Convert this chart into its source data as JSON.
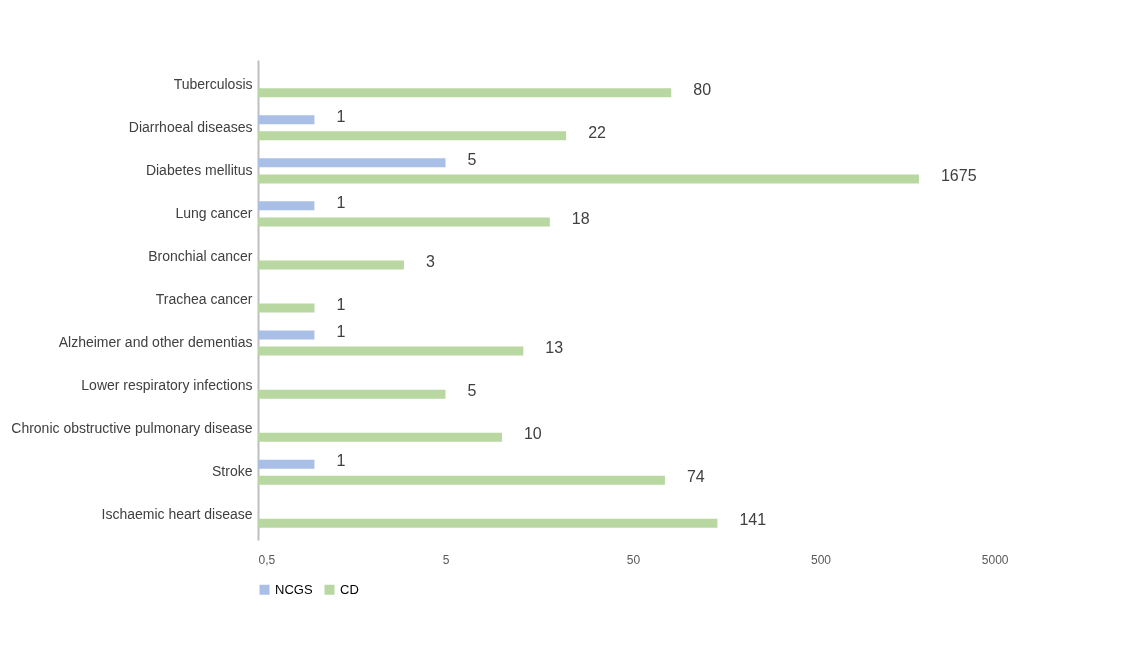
{
  "chart_data": {
    "type": "bar",
    "orientation": "horizontal",
    "log": "x",
    "categories": [
      "Tuberculosis",
      "Diarrhoeal diseases",
      "Diabetes mellitus",
      "Lung cancer",
      "Bronchial cancer",
      "Trachea cancer",
      "Alzheimer and other dementias",
      "Lower respiratory infections",
      "Chronic obstructive pulmonary disease",
      "Stroke",
      "Ischaemic heart disease"
    ],
    "series": [
      {
        "name": "NCGS",
        "color": "#a9bfe6",
        "values": [
          null,
          1,
          5,
          1,
          null,
          null,
          1,
          null,
          null,
          1,
          null
        ]
      },
      {
        "name": "CD",
        "color": "#b9d7a0",
        "values": [
          80,
          22,
          1675,
          18,
          3,
          1,
          13,
          5,
          10,
          74,
          141
        ]
      }
    ],
    "xlim": [
      0.5,
      5000
    ],
    "xticks": [
      {
        "value": 0.5,
        "label": "0,5"
      },
      5,
      50,
      500,
      5000
    ],
    "data_labels": true,
    "grid": false,
    "legend": "bottom"
  }
}
